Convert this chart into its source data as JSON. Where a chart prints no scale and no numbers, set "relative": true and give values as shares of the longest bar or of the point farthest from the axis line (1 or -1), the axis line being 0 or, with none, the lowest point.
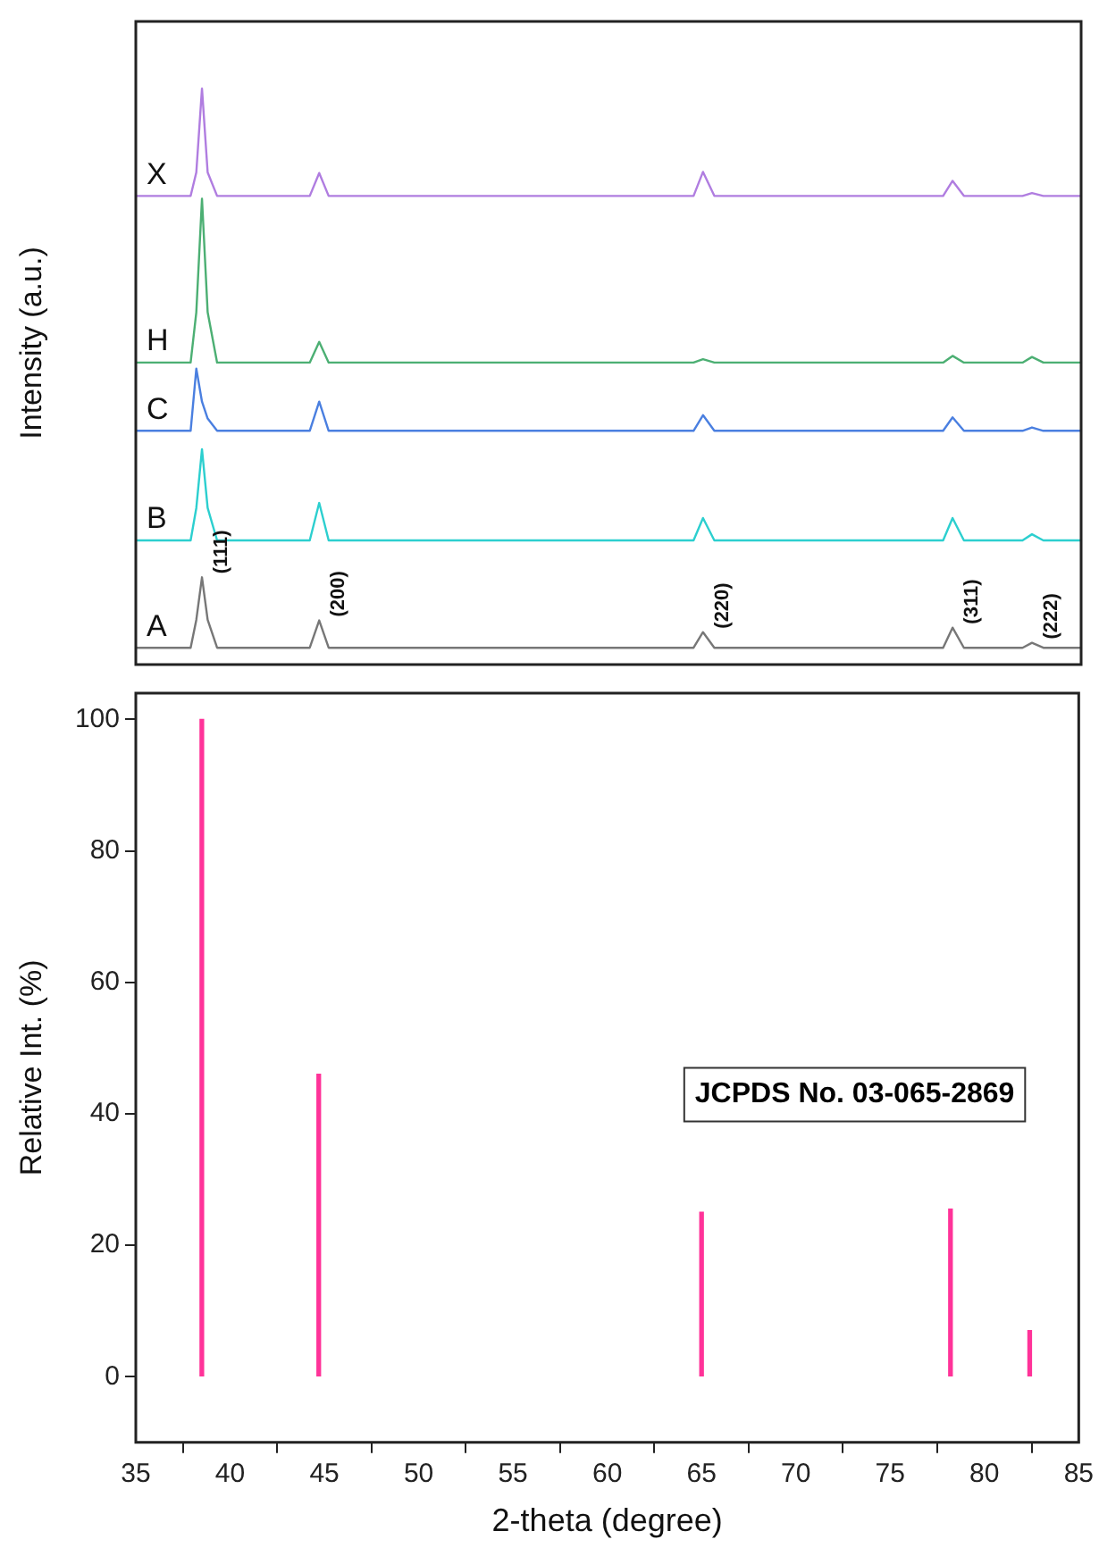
{
  "chart_data": [
    {
      "type": "line",
      "ylabel": "Intensity (a.u.)",
      "relative": true,
      "xlim": [
        35,
        85
      ],
      "grid": false,
      "legend": false,
      "marker": "none",
      "line_style": "solid",
      "x": [
        35,
        37.9,
        38.2,
        38.5,
        38.8,
        39.3,
        44.2,
        44.7,
        45.2,
        64.5,
        65.0,
        65.6,
        77.7,
        78.2,
        78.8,
        81.9,
        82.4,
        83.0,
        85
      ],
      "series": [
        {
          "name": "X",
          "color": "#b07de0",
          "values": [
            0.808,
            0.808,
            0.85,
            1,
            0.85,
            0.808,
            0.808,
            0.849,
            0.808,
            0.808,
            0.851,
            0.808,
            0.808,
            0.835,
            0.808,
            0.808,
            0.813,
            0.808,
            0.808
          ]
        },
        {
          "name": "H",
          "color": "#4caf73",
          "values": [
            0.51,
            0.51,
            0.6,
            0.803,
            0.6,
            0.51,
            0.51,
            0.547,
            0.51,
            0.51,
            0.516,
            0.51,
            0.51,
            0.522,
            0.51,
            0.51,
            0.52,
            0.51,
            0.51
          ]
        },
        {
          "name": "C",
          "color": "#4a7fe0",
          "values": [
            0.388,
            0.388,
            0.499,
            0.44,
            0.41,
            0.388,
            0.388,
            0.44,
            0.388,
            0.388,
            0.416,
            0.388,
            0.388,
            0.412,
            0.388,
            0.388,
            0.394,
            0.388,
            0.388
          ]
        },
        {
          "name": "B",
          "color": "#2ccfcf",
          "values": [
            0.192,
            0.192,
            0.25,
            0.355,
            0.25,
            0.192,
            0.192,
            0.259,
            0.192,
            0.192,
            0.232,
            0.192,
            0.192,
            0.232,
            0.192,
            0.192,
            0.203,
            0.192,
            0.192
          ]
        },
        {
          "name": "A",
          "color": "#777777",
          "values": [
            0,
            0,
            0.05,
            0.126,
            0.05,
            0,
            0,
            0.049,
            0,
            0,
            0.028,
            0,
            0,
            0.036,
            0,
            0,
            0.009,
            0,
            0
          ]
        }
      ],
      "annotations": [
        {
          "text": "(111)",
          "x": 38.5,
          "y": 0.126
        },
        {
          "text": "(200)",
          "x": 44.7,
          "y": 0.049
        },
        {
          "text": "(220)",
          "x": 65.0,
          "y": 0.028
        },
        {
          "text": "(311)",
          "x": 78.2,
          "y": 0.036
        },
        {
          "text": "(222)",
          "x": 82.4,
          "y": 0.009
        }
      ]
    },
    {
      "type": "bar",
      "xlabel": "2-theta (degree)",
      "ylabel": "Relative Int. (%)",
      "xlim": [
        35,
        85
      ],
      "ylim": [
        -10,
        104
      ],
      "xticks": [
        35,
        40,
        45,
        50,
        55,
        60,
        65,
        70,
        75,
        80,
        85
      ],
      "yticks": [
        0,
        20,
        40,
        60,
        80,
        100
      ],
      "grid": false,
      "legend": false,
      "x": [
        38.5,
        44.7,
        65.0,
        78.2,
        82.4
      ],
      "values": [
        100,
        46,
        25,
        25.5,
        7
      ],
      "color": "#ff3399",
      "annotations": [
        "JCPDS No. 03-065-2869"
      ]
    }
  ]
}
